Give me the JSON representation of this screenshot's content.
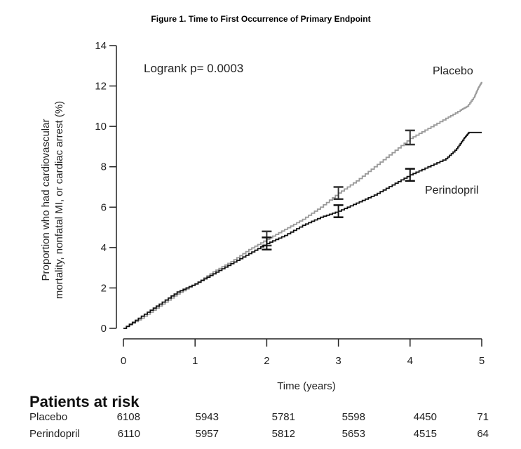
{
  "chart_data": {
    "type": "line",
    "title": "Figure 1. Time to First Occurrence of Primary Endpoint",
    "xlabel": "Time (years)",
    "ylabel": [
      "Proportion who had cardiovascular",
      "mortality, nonfatal MI, or cardiac arrest (%)"
    ],
    "xlim": [
      0,
      5
    ],
    "ylim": [
      0,
      14
    ],
    "xticks": [
      0,
      1,
      2,
      3,
      4,
      5
    ],
    "yticks": [
      0,
      2,
      4,
      6,
      8,
      10,
      12,
      14
    ],
    "grid": false,
    "annotation": "Logrank p= 0.0003",
    "series": [
      {
        "name": "Placebo",
        "color": "#9a9a9a",
        "x": [
          0,
          0.25,
          0.5,
          0.75,
          1,
          1.25,
          1.5,
          1.75,
          2,
          2.25,
          2.5,
          2.75,
          3,
          3.25,
          3.5,
          3.75,
          4,
          4.25,
          4.5,
          4.7,
          4.8,
          4.9,
          4.95,
          5
        ],
        "y": [
          0,
          0.5,
          1.1,
          1.7,
          2.2,
          2.8,
          3.3,
          3.9,
          4.4,
          4.9,
          5.4,
          6.0,
          6.7,
          7.3,
          8.0,
          8.7,
          9.4,
          9.9,
          10.4,
          10.8,
          11.0,
          11.5,
          11.9,
          12.2
        ],
        "ci": [
          {
            "x": 2,
            "low": 4.1,
            "high": 4.8
          },
          {
            "x": 3,
            "low": 6.4,
            "high": 7.0
          },
          {
            "x": 4,
            "low": 9.1,
            "high": 9.8
          }
        ]
      },
      {
        "name": "Perindopril",
        "color": "#111111",
        "x": [
          0,
          0.25,
          0.5,
          0.75,
          1,
          1.25,
          1.5,
          1.75,
          2,
          2.25,
          2.5,
          2.75,
          3,
          3.25,
          3.5,
          3.75,
          4,
          4.25,
          4.5,
          4.65,
          4.75,
          4.82,
          5
        ],
        "y": [
          0,
          0.6,
          1.2,
          1.8,
          2.2,
          2.7,
          3.2,
          3.7,
          4.2,
          4.6,
          5.1,
          5.5,
          5.8,
          6.2,
          6.6,
          7.1,
          7.6,
          8.0,
          8.4,
          8.9,
          9.4,
          9.7,
          9.7
        ],
        "ci": [
          {
            "x": 2,
            "low": 3.9,
            "high": 4.5
          },
          {
            "x": 3,
            "low": 5.5,
            "high": 6.1
          },
          {
            "x": 4,
            "low": 7.3,
            "high": 7.9
          }
        ]
      }
    ],
    "risk_table": {
      "heading": "Patients at risk",
      "rows": [
        {
          "label": "Placebo",
          "values": [
            "6108",
            "5943",
            "5781",
            "5598",
            "4450",
            "71"
          ]
        },
        {
          "label": "Perindopril",
          "values": [
            "6110",
            "5957",
            "5812",
            "5653",
            "4515",
            "64"
          ]
        }
      ]
    }
  }
}
